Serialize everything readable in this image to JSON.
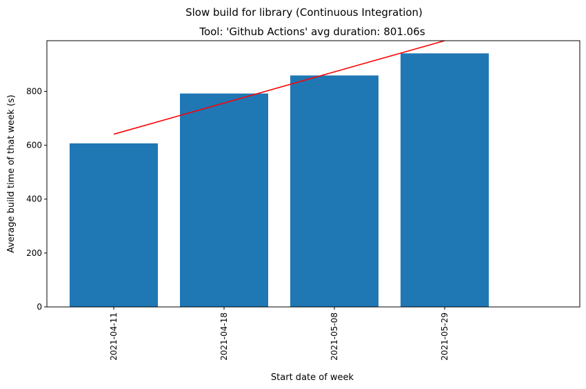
{
  "chart_data": {
    "type": "bar",
    "suptitle": "Slow build for library (Continuous Integration)",
    "title": "Tool: 'Github Actions' avg duration: 801.06s",
    "xlabel": "Start date of week",
    "ylabel": "Average build time of that week (s)",
    "categories": [
      "2021-04-11",
      "2021-04-18",
      "2021-05-08",
      "2021-05-29"
    ],
    "values": [
      607,
      792,
      859,
      941
    ],
    "ylim": [
      0,
      988
    ],
    "yticks": [
      0,
      200,
      400,
      600,
      800
    ],
    "bar_color": "#1f77b4",
    "trend_line": {
      "color": "#ff0000",
      "x_range": [
        "2021-04-11",
        "2021-05-29"
      ],
      "y_range": [
        641,
        988
      ]
    },
    "grid": false,
    "legend": "none"
  }
}
